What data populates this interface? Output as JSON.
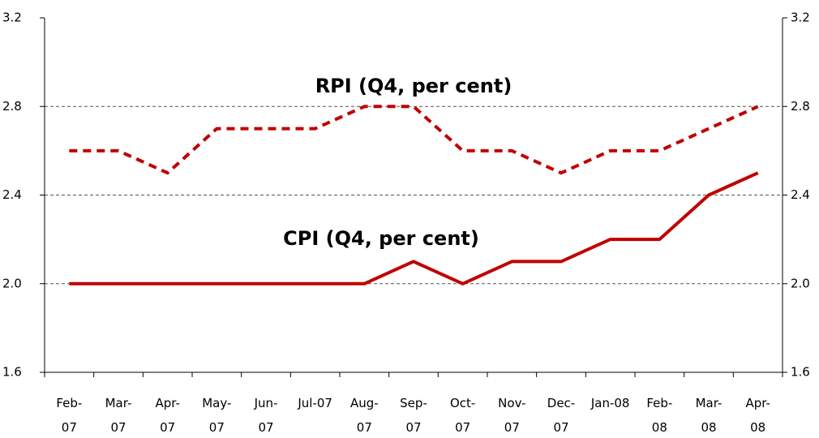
{
  "chart_data": {
    "type": "line",
    "categories": [
      "Feb-\n07",
      "Mar-\n07",
      "Apr-\n07",
      "May-\n07",
      "Jun-\n07",
      "Jul-07",
      "Aug-\n07",
      "Sep-\n07",
      "Oct-\n07",
      "Nov-\n07",
      "Dec-\n07",
      "Jan-08",
      "Feb-\n08",
      "Mar-\n08",
      "Apr-\n08"
    ],
    "series": [
      {
        "name": "RPI (Q4, per cent)",
        "color": "#c00000",
        "dashed": true,
        "values": [
          2.6,
          2.6,
          2.5,
          2.7,
          2.7,
          2.7,
          2.8,
          2.8,
          2.6,
          2.6,
          2.5,
          2.6,
          2.6,
          2.7,
          2.8
        ]
      },
      {
        "name": "CPI (Q4, per cent)",
        "color": "#c00000",
        "dashed": false,
        "values": [
          2.0,
          2.0,
          2.0,
          2.0,
          2.0,
          2.0,
          2.0,
          2.1,
          2.0,
          2.1,
          2.1,
          2.2,
          2.2,
          2.4,
          2.5
        ]
      }
    ],
    "ylim": [
      1.6,
      3.2
    ],
    "yticks": [
      1.6,
      {
        "value": 2,
        "label": "2.0"
      },
      2.4,
      2.8,
      3.2
    ],
    "y2lim": [
      1.6,
      3.2
    ],
    "y2ticks": [
      1.6,
      {
        "value": 2,
        "label": "2.0"
      },
      2.4,
      2.8,
      3.2
    ],
    "grid": true
  }
}
